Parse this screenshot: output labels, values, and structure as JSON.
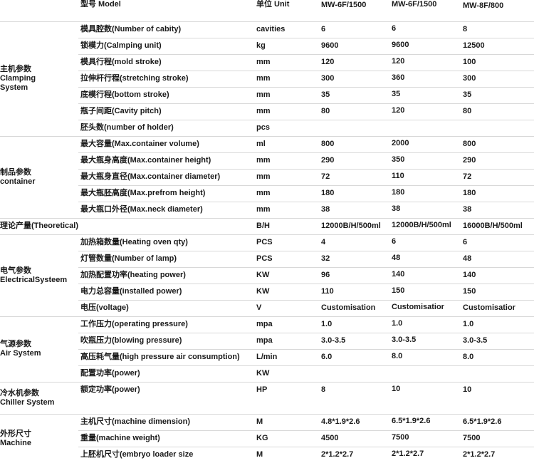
{
  "header": {
    "model": "型号 Model",
    "unit": "单位 Unit",
    "models": [
      "MW-6F/1500",
      "MW-6F/1500",
      "MW-8F/800"
    ]
  },
  "groups": [
    {
      "title": [
        "主机参数",
        "Clamping",
        "System"
      ],
      "rows": [
        {
          "param": "模具腔数(Number of cabity)",
          "unit": "cavities",
          "values": [
            "6",
            "6",
            "8"
          ]
        },
        {
          "param": "锁模力(Calmping unit)",
          "unit": "kg",
          "values": [
            "9600",
            "9600",
            "12500"
          ]
        },
        {
          "param": "模具行程(mold stroke)",
          "unit": "mm",
          "values": [
            "120",
            "120",
            "100"
          ]
        },
        {
          "param": "拉伸杆行程(stretching stroke)",
          "unit": "mm",
          "values": [
            "300",
            "360",
            "300"
          ]
        },
        {
          "param": "底模行程(bottom stroke)",
          "unit": "mm",
          "values": [
            "35",
            "35",
            "35"
          ]
        },
        {
          "param": "瓶子间距(Cavity pitch)",
          "unit": "mm",
          "values": [
            "80",
            "120",
            "80"
          ]
        },
        {
          "param": "胚头数(number of holder)",
          "unit": "pcs",
          "values": [
            "",
            "",
            ""
          ]
        }
      ]
    },
    {
      "title": [
        "制品参数",
        "container"
      ],
      "rows": [
        {
          "param": "最大容量(Max.container volume)",
          "unit": "ml",
          "values": [
            "800",
            "2000",
            "800"
          ]
        },
        {
          "param": "最大瓶身高度(Max.container height)",
          "unit": "mm",
          "values": [
            "290",
            "350",
            "290"
          ]
        },
        {
          "param": "最大瓶身直径(Max.container diameter)",
          "unit": "mm",
          "values": [
            "72",
            "110",
            "72"
          ]
        },
        {
          "param": "最大瓶胚高度(Max.prefrom height)",
          "unit": "mm",
          "values": [
            "180",
            "180",
            "180"
          ]
        },
        {
          "param": "最大瓶口外径(Max.neck diameter)",
          "unit": "mm",
          "values": [
            "38",
            "38",
            "38"
          ]
        }
      ]
    },
    {
      "title": [],
      "full": "理论产量(Theoretical)",
      "rows": [
        {
          "param": "",
          "unit": "B/H",
          "values": [
            "12000B/H/500ml",
            "12000B/H/500ml",
            "16000B/H/500ml"
          ]
        }
      ]
    },
    {
      "title": [
        "电气参数",
        "ElectricalSysteem"
      ],
      "rows": [
        {
          "param": "加热箱数量(Heating oven qty)",
          "unit": "PCS",
          "values": [
            "4",
            "6",
            "6"
          ]
        },
        {
          "param": "灯管数量(Number of lamp)",
          "unit": "PCS",
          "values": [
            "32",
            "48",
            "48"
          ]
        },
        {
          "param": "加热配置功率(heating power)",
          "unit": "KW",
          "values": [
            "96",
            "140",
            "140"
          ]
        },
        {
          "param": "电力总容量(installed power)",
          "unit": "KW",
          "values": [
            "110",
            "150",
            "150"
          ]
        },
        {
          "param": "电压(voltage)",
          "unit": "V",
          "values": [
            "Customisation",
            "Customisatior",
            "Customisatior"
          ]
        }
      ]
    },
    {
      "title": [
        "气源参数",
        "Air System"
      ],
      "rows": [
        {
          "param": "工作压力(operating pressure)",
          "unit": "mpa",
          "values": [
            "1.0",
            "1.0",
            "1.0"
          ]
        },
        {
          "param": "吹瓶压力(blowing pressure)",
          "unit": "mpa",
          "values": [
            "3.0-3.5",
            "3.0-3.5",
            "3.0-3.5"
          ]
        },
        {
          "param": "高压耗气量(high pressure air consumption)",
          "unit": "L/min",
          "values": [
            "6.0",
            "8.0",
            "8.0"
          ]
        },
        {
          "param": "配置功率(power)",
          "unit": "KW",
          "values": [
            "",
            "",
            ""
          ]
        }
      ]
    },
    {
      "title": [
        "冷水机参数",
        "Chiller System"
      ],
      "tall": true,
      "rows": [
        {
          "param": "额定功率(power)",
          "unit": "HP",
          "values": [
            "8",
            "10",
            "10"
          ]
        }
      ]
    },
    {
      "title": [
        "外形尺寸",
        "Machine"
      ],
      "rows": [
        {
          "param": "主机尺寸(machine dimension)",
          "unit": "M",
          "values": [
            "4.8*1.9*2.6",
            "6.5*1.9*2.6",
            "6.5*1.9*2.6"
          ]
        },
        {
          "param": "重量(machine weight)",
          "unit": "KG",
          "values": [
            "4500",
            "7500",
            "7500"
          ]
        },
        {
          "param": "上胚机尺寸(embryo loader size",
          "unit": "M",
          "values": [
            "2*1.2*2.7",
            "2*1.2*2.7",
            "2*1.2*2.7"
          ]
        }
      ]
    }
  ]
}
